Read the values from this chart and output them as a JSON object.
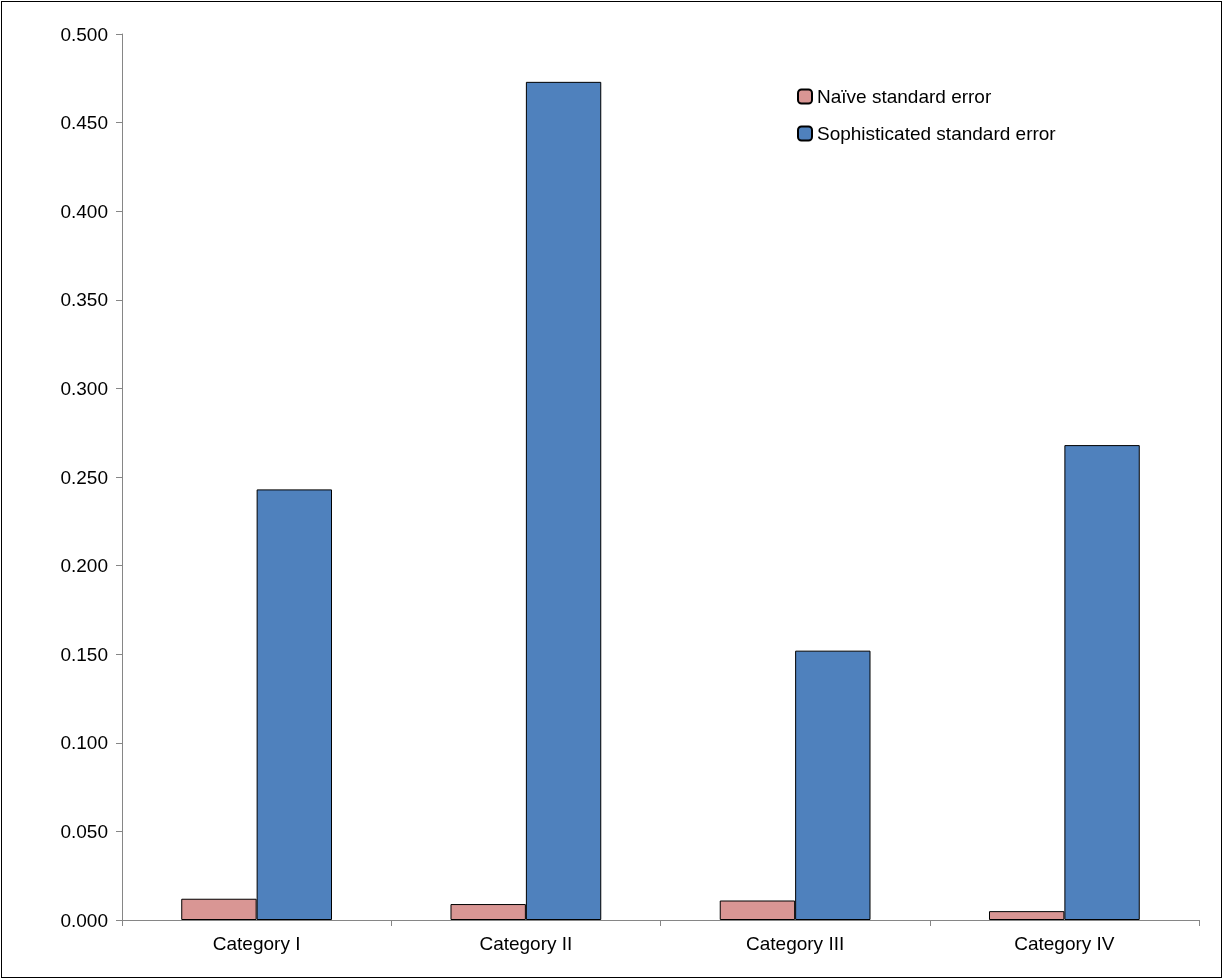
{
  "chart_data": {
    "type": "bar",
    "categories": [
      "Category I",
      "Category II",
      "Category III",
      "Category IV"
    ],
    "series": [
      {
        "name": "Naïve standard error",
        "color": "#d99694",
        "values": [
          0.012,
          0.009,
          0.011,
          0.005
        ]
      },
      {
        "name": "Sophisticated standard error",
        "color": "#4f81bd",
        "values": [
          0.243,
          0.473,
          0.152,
          0.268
        ]
      }
    ],
    "ylim": [
      0,
      0.5
    ],
    "yticks": [
      {
        "value": 0,
        "label": "0.000"
      },
      {
        "value": 0.05,
        "label": "0.050"
      },
      {
        "value": 0.1,
        "label": "0.100"
      },
      {
        "value": 0.15,
        "label": "0.150"
      },
      {
        "value": 0.2,
        "label": "0.200"
      },
      {
        "value": 0.25,
        "label": "0.250"
      },
      {
        "value": 0.3,
        "label": "0.300"
      },
      {
        "value": 0.35,
        "label": "0.350"
      },
      {
        "value": 0.4,
        "label": "0.400"
      },
      {
        "value": 0.45,
        "label": "0.450"
      },
      {
        "value": 0.5,
        "label": "0.500"
      }
    ],
    "grid": false,
    "legend": "top right"
  }
}
